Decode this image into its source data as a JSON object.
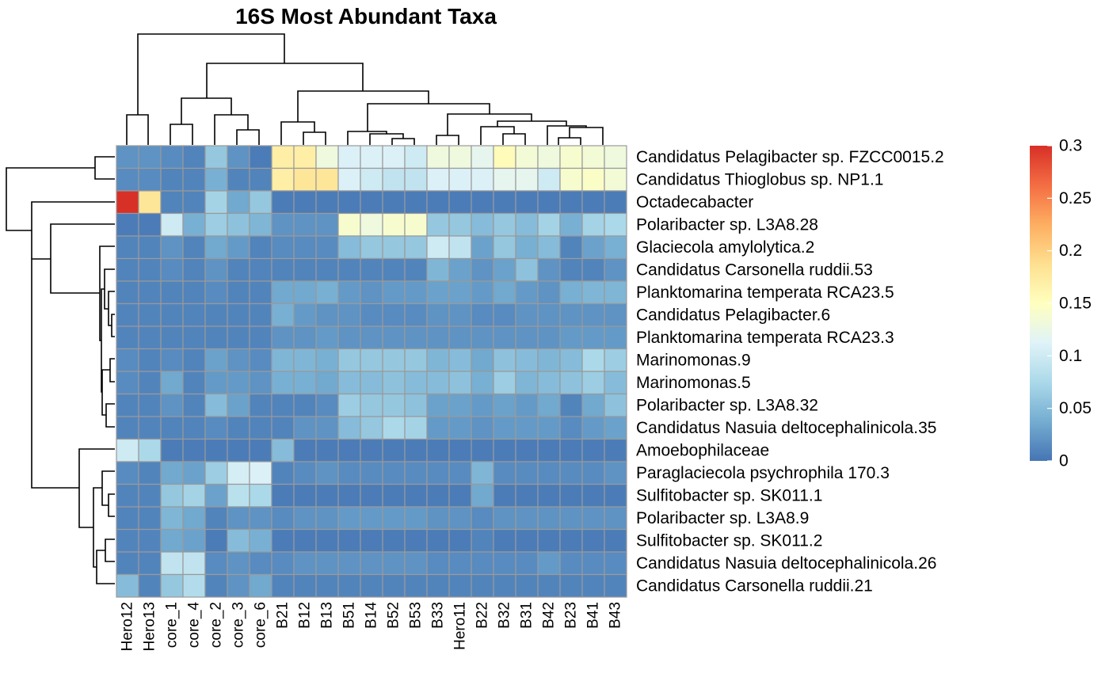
{
  "chart_data": {
    "type": "heatmap",
    "title": "16S Most Abundant Taxa",
    "columns": [
      "Hero12",
      "Hero13",
      "core_1",
      "core_4",
      "core_2",
      "core_3",
      "core_6",
      "B21",
      "B12",
      "B13",
      "B51",
      "B14",
      "B52",
      "B53",
      "B33",
      "Hero11",
      "B22",
      "B32",
      "B31",
      "B42",
      "B23",
      "B41",
      "B43"
    ],
    "rows": [
      "Candidatus Pelagibacter sp. FZCC0015.2",
      "Candidatus Thioglobus sp. NP1.1",
      "Octadecabacter",
      "Polaribacter sp. L3A8.28",
      "Glaciecola amylolytica.2",
      "Candidatus Carsonella ruddii.53",
      "Planktomarina temperata RCA23.5",
      "Candidatus Pelagibacter.6",
      "Planktomarina temperata RCA23.3",
      "Marinomonas.9",
      "Marinomonas.5",
      "Polaribacter sp. L3A8.32",
      "Candidatus Nasuia deltocephalinicola.35",
      "Amoebophilaceae",
      "Paraglaciecola psychrophila 170.3",
      "Sulfitobacter sp. SK011.1",
      "Polaribacter sp. L3A8.9",
      "Sulfitobacter sp. SK011.2",
      "Candidatus Nasuia deltocephalinicola.26",
      "Candidatus Carsonella ruddii.21"
    ],
    "values": [
      [
        0.02,
        0.02,
        0.015,
        0.01,
        0.06,
        0.02,
        0.005,
        0.17,
        0.17,
        0.13,
        0.11,
        0.11,
        0.11,
        0.1,
        0.13,
        0.13,
        0.12,
        0.155,
        0.135,
        0.13,
        0.14,
        0.135,
        0.13
      ],
      [
        0.015,
        0.015,
        0.01,
        0.01,
        0.04,
        0.01,
        0.01,
        0.17,
        0.18,
        0.18,
        0.11,
        0.1,
        0.09,
        0.09,
        0.11,
        0.11,
        0.11,
        0.12,
        0.12,
        0.1,
        0.14,
        0.145,
        0.135
      ],
      [
        0.3,
        0.18,
        0.01,
        0.01,
        0.07,
        0.035,
        0.06,
        0.005,
        0.005,
        0.005,
        0.005,
        0.005,
        0.005,
        0.005,
        0.005,
        0.005,
        0.005,
        0.005,
        0.005,
        0.005,
        0.005,
        0.005,
        0.005
      ],
      [
        0.005,
        0.005,
        0.1,
        0.04,
        0.065,
        0.055,
        0.045,
        0.02,
        0.02,
        0.02,
        0.14,
        0.13,
        0.14,
        0.14,
        0.06,
        0.06,
        0.05,
        0.06,
        0.05,
        0.07,
        0.04,
        0.07,
        0.075
      ],
      [
        0.01,
        0.01,
        0.02,
        0.01,
        0.035,
        0.025,
        0.01,
        0.015,
        0.015,
        0.015,
        0.05,
        0.06,
        0.06,
        0.06,
        0.1,
        0.09,
        0.03,
        0.06,
        0.04,
        0.05,
        0.01,
        0.03,
        0.04
      ],
      [
        0.01,
        0.01,
        0.015,
        0.01,
        0.02,
        0.01,
        0.01,
        0.01,
        0.01,
        0.01,
        0.01,
        0.01,
        0.01,
        0.01,
        0.045,
        0.03,
        0.02,
        0.03,
        0.055,
        0.02,
        0.01,
        0.01,
        0.02
      ],
      [
        0.01,
        0.01,
        0.01,
        0.01,
        0.015,
        0.01,
        0.01,
        0.035,
        0.035,
        0.04,
        0.025,
        0.02,
        0.025,
        0.025,
        0.03,
        0.03,
        0.025,
        0.035,
        0.025,
        0.02,
        0.04,
        0.045,
        0.045
      ],
      [
        0.01,
        0.01,
        0.01,
        0.01,
        0.01,
        0.01,
        0.01,
        0.04,
        0.025,
        0.02,
        0.02,
        0.015,
        0.015,
        0.015,
        0.02,
        0.02,
        0.015,
        0.015,
        0.02,
        0.02,
        0.02,
        0.02,
        0.02
      ],
      [
        0.01,
        0.01,
        0.01,
        0.01,
        0.01,
        0.01,
        0.01,
        0.02,
        0.02,
        0.025,
        0.02,
        0.02,
        0.02,
        0.02,
        0.02,
        0.02,
        0.02,
        0.02,
        0.02,
        0.02,
        0.025,
        0.025,
        0.025
      ],
      [
        0.015,
        0.01,
        0.015,
        0.01,
        0.03,
        0.02,
        0.015,
        0.045,
        0.045,
        0.04,
        0.06,
        0.06,
        0.06,
        0.06,
        0.045,
        0.05,
        0.035,
        0.055,
        0.05,
        0.045,
        0.05,
        0.075,
        0.065
      ],
      [
        0.015,
        0.01,
        0.035,
        0.01,
        0.025,
        0.025,
        0.02,
        0.04,
        0.04,
        0.035,
        0.05,
        0.05,
        0.055,
        0.05,
        0.05,
        0.055,
        0.04,
        0.065,
        0.045,
        0.05,
        0.055,
        0.065,
        0.05
      ],
      [
        0.01,
        0.01,
        0.02,
        0.01,
        0.05,
        0.03,
        0.01,
        0.01,
        0.01,
        0.015,
        0.065,
        0.06,
        0.06,
        0.055,
        0.03,
        0.03,
        0.025,
        0.03,
        0.025,
        0.035,
        0.01,
        0.035,
        0.055
      ],
      [
        0.01,
        0.01,
        0.01,
        0.01,
        0.015,
        0.01,
        0.01,
        0.01,
        0.02,
        0.02,
        0.05,
        0.06,
        0.075,
        0.07,
        0.025,
        0.025,
        0.02,
        0.025,
        0.025,
        0.025,
        0.015,
        0.025,
        0.03
      ],
      [
        0.1,
        0.075,
        0.005,
        0.005,
        0.005,
        0.005,
        0.005,
        0.05,
        0.005,
        0.005,
        0.005,
        0.005,
        0.005,
        0.005,
        0.005,
        0.005,
        0.005,
        0.005,
        0.005,
        0.005,
        0.005,
        0.005,
        0.005
      ],
      [
        0.015,
        0.01,
        0.035,
        0.03,
        0.065,
        0.105,
        0.11,
        0.01,
        0.015,
        0.02,
        0.015,
        0.015,
        0.015,
        0.015,
        0.015,
        0.015,
        0.045,
        0.015,
        0.015,
        0.015,
        0.015,
        0.015,
        0.02
      ],
      [
        0.01,
        0.01,
        0.06,
        0.07,
        0.03,
        0.085,
        0.075,
        0.005,
        0.005,
        0.005,
        0.005,
        0.005,
        0.005,
        0.005,
        0.005,
        0.005,
        0.035,
        0.005,
        0.005,
        0.005,
        0.005,
        0.005,
        0.005
      ],
      [
        0.01,
        0.01,
        0.045,
        0.035,
        0.01,
        0.02,
        0.02,
        0.015,
        0.02,
        0.02,
        0.025,
        0.025,
        0.025,
        0.025,
        0.02,
        0.02,
        0.015,
        0.02,
        0.02,
        0.02,
        0.02,
        0.02,
        0.02
      ],
      [
        0.01,
        0.01,
        0.035,
        0.03,
        0.005,
        0.05,
        0.04,
        0.005,
        0.005,
        0.005,
        0.005,
        0.005,
        0.005,
        0.005,
        0.005,
        0.005,
        0.01,
        0.005,
        0.005,
        0.005,
        0.005,
        0.005,
        0.005
      ],
      [
        0.01,
        0.01,
        0.09,
        0.09,
        0.015,
        0.02,
        0.015,
        0.015,
        0.02,
        0.02,
        0.02,
        0.02,
        0.02,
        0.02,
        0.015,
        0.015,
        0.015,
        0.015,
        0.015,
        0.025,
        0.015,
        0.015,
        0.015
      ],
      [
        0.05,
        0.01,
        0.06,
        0.08,
        0.01,
        0.02,
        0.035,
        0.01,
        0.01,
        0.01,
        0.01,
        0.01,
        0.01,
        0.01,
        0.01,
        0.01,
        0.01,
        0.01,
        0.01,
        0.01,
        0.01,
        0.01,
        0.01
      ]
    ],
    "color_scale": {
      "min": 0,
      "max": 0.3,
      "colors": [
        "#4575b4",
        "#74add1",
        "#abd9e9",
        "#e0f3f8",
        "#ffffbf",
        "#fee090",
        "#fdae61",
        "#f46d43",
        "#d73027"
      ]
    },
    "legend": {
      "ticks": [
        "0",
        "0.05",
        "0.1",
        "0.15",
        "0.2",
        "0.25",
        "0.3"
      ],
      "tick_values": [
        0,
        0.05,
        0.1,
        0.15,
        0.2,
        0.25,
        0.3
      ],
      "placement": "right"
    },
    "cell_border_color": "#9a9a9a"
  }
}
